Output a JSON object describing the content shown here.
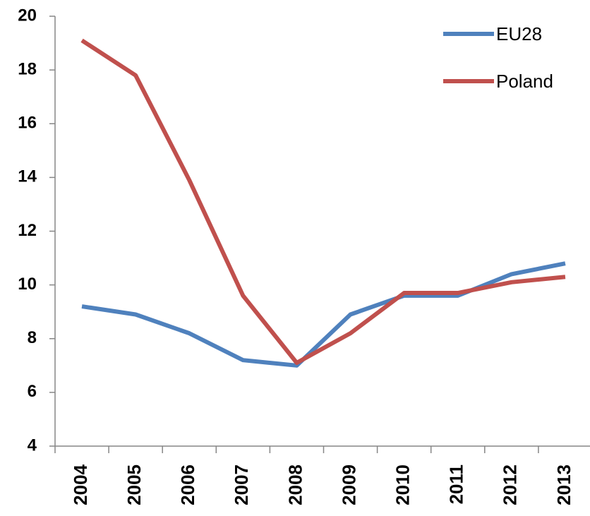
{
  "chart_data": {
    "type": "line",
    "categories": [
      "2004",
      "2005",
      "2006",
      "2007",
      "2008",
      "2009",
      "2010",
      "2011",
      "2012",
      "2013"
    ],
    "series": [
      {
        "name": "EU28",
        "color": "#4f81bd",
        "values": [
          9.2,
          8.9,
          8.2,
          7.2,
          7.0,
          8.9,
          9.6,
          9.6,
          10.4,
          10.8
        ]
      },
      {
        "name": "Poland",
        "color": "#c0504d",
        "values": [
          19.1,
          17.8,
          13.9,
          9.6,
          7.1,
          8.2,
          9.7,
          9.7,
          10.1,
          10.3
        ]
      }
    ],
    "ylim": [
      4,
      20
    ],
    "yticks": [
      4,
      6,
      8,
      10,
      12,
      14,
      16,
      18,
      20
    ],
    "grid": false,
    "legend": "upper right"
  }
}
